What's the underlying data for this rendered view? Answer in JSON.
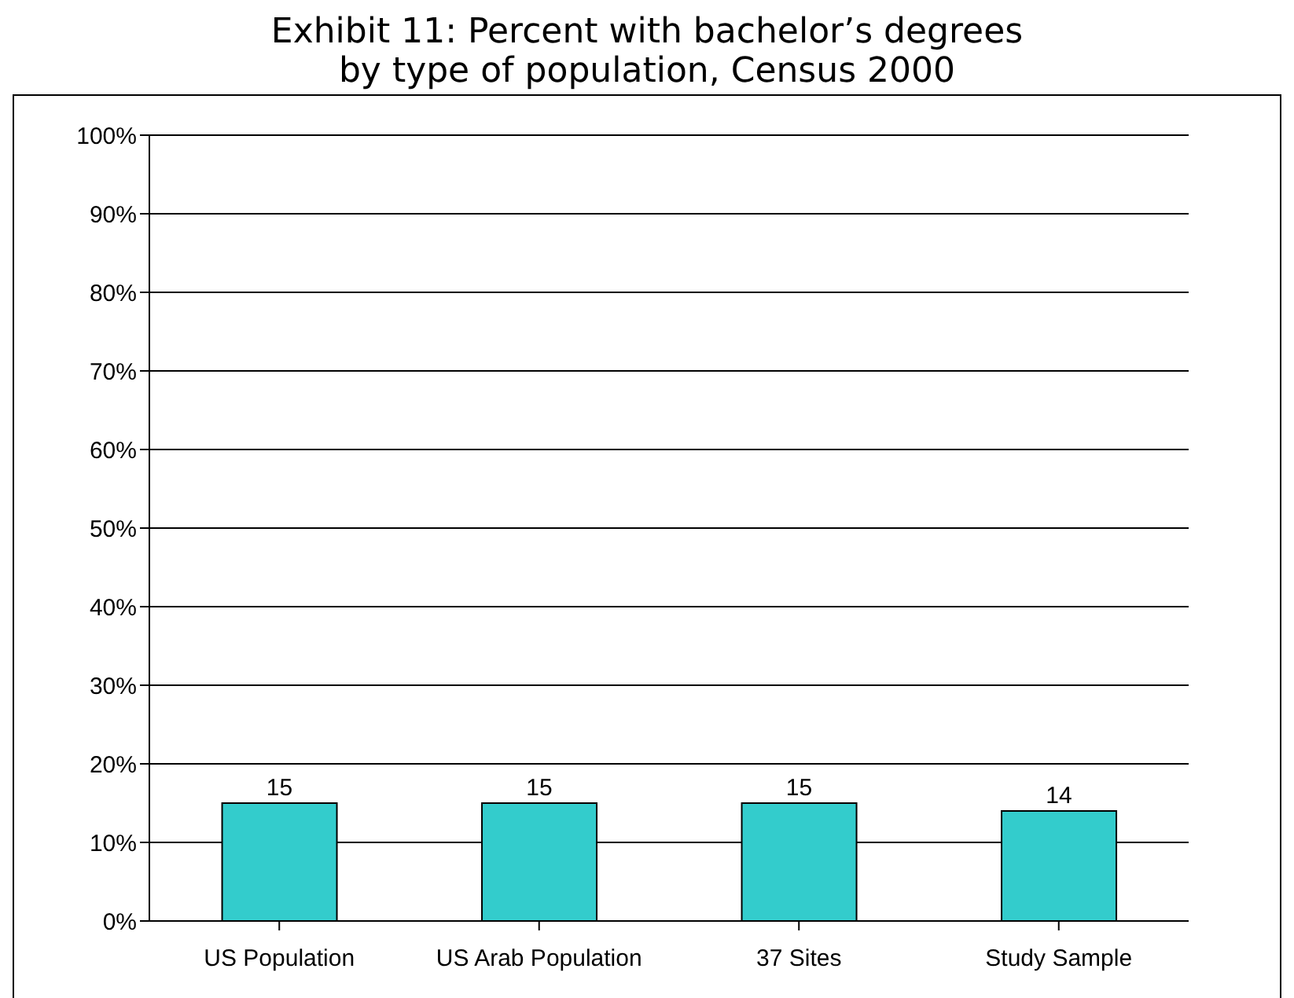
{
  "chart_data": {
    "type": "bar",
    "title": "Exhibit 11: Percent with bachelor’s degrees\nby type of population, Census 2000",
    "categories": [
      "US Population",
      "US Arab Population",
      "37 Sites",
      "Study Sample"
    ],
    "values": [
      15,
      15,
      15,
      14
    ],
    "color": "#33cccc",
    "data_labels": true,
    "grid": "y",
    "ylim": [
      0,
      100
    ],
    "yticks": [
      {
        "value": 0,
        "label": "0%"
      },
      {
        "value": 10,
        "label": "10%"
      },
      {
        "value": 20,
        "label": "20%"
      },
      {
        "value": 30,
        "label": "30%"
      },
      {
        "value": 40,
        "label": "40%"
      },
      {
        "value": 50,
        "label": "50%"
      },
      {
        "value": 60,
        "label": "60%"
      },
      {
        "value": 70,
        "label": "70%"
      },
      {
        "value": 80,
        "label": "80%"
      },
      {
        "value": 90,
        "label": "90%"
      },
      {
        "value": 100,
        "label": "100%"
      }
    ]
  }
}
